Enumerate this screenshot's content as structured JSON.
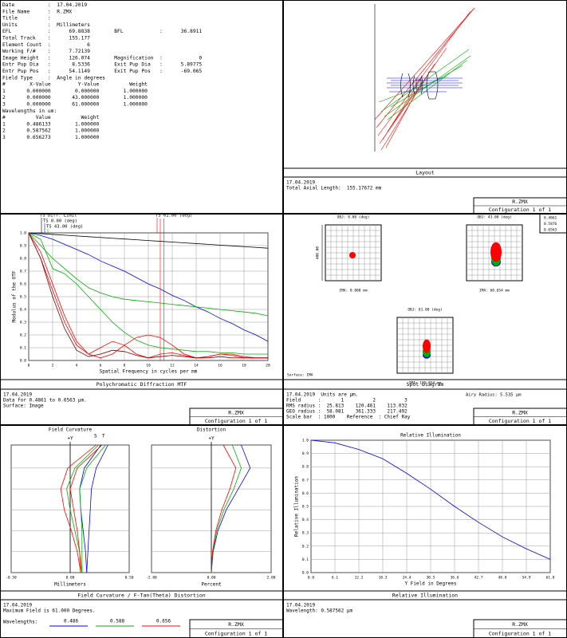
{
  "prescription": {
    "lines": [
      "Date           :  17.04.2019",
      "File Name      :  R.ZMX",
      "Title          :",
      "Units          :  Millimeters",
      "EFL            :      69.8838        BFL            :      36.8911",
      "Total Track    :      155.177",
      "Element Count  :            6",
      "Working F/#    :      7.72139",
      "Image Height   :      126.074        Magnification  :            0",
      "Entr Pup Dia   :       8.5336        Exit Pup Dia   :      5.89775",
      "Entr Pup Pos   :      54.1149        Exit Pup Pos   :      -69.065",
      "Field Type     :  Angle in degrees",
      "#        X-Value         Y-Value          Weight",
      "1       0.000000        0.000000        1.000000",
      "2       0.000000       43.000000        1.000000",
      "3       0.000000       61.000000        1.000000",
      "Wavelengths in um:",
      "#          Value          Weight",
      "1       0.486133        1.000000",
      "2       0.587562        1.000000",
      "3       0.656273        1.000000"
    ]
  },
  "panels": [
    {
      "caption": "Layout",
      "info": [
        "17.04.2019",
        "Total Axial Length:  155.17672 mm"
      ],
      "file": "R.ZMX",
      "config": "Configuration 1 of 1"
    },
    {
      "caption": "Polychromatic Diffraction MTF",
      "info": [
        "17.04.2019",
        "Data for 0.4861 to 0.6563 µm.",
        "Surface: Image"
      ],
      "file": "R.ZMX",
      "config": "Configuration 1 of 1"
    },
    {
      "caption": "Spot Diagram",
      "info": [
        "17.04.2019  Units are µm.",
        "Field      :       1          2          3",
        "RMS radius :  25.813    120.461    113.032",
        "GEO radius :  58.081    361.333    217.492",
        "Scale bar  : 1000    Reference  : Chief Ray"
      ],
      "file": "R.ZMX",
      "config": "Configuration 1 of 1"
    },
    {
      "caption": "Field Curvature / F-Tan(Theta) Distortion",
      "info": [
        "17.04.2019",
        "Maximum Field is 61.000 Degrees."
      ],
      "file": "R.ZMX",
      "config": "Configuration 1 of 1"
    },
    {
      "caption": "Relative Illumination",
      "info": [
        "17.04.2019",
        "Wavelength: 0.587562 µm"
      ],
      "file": "R.ZMX",
      "config": "Configuration 1 of 1"
    }
  ],
  "spot": {
    "airy": "Airy Radius: 5.535 µm",
    "fields": [
      {
        "obj": "OBJ: 0.00 (deg)",
        "ima": "IMA: 0.000 mm"
      },
      {
        "obj": "OBJ: 43.00 (deg)",
        "ima": "IMA: 68.654 mm"
      },
      {
        "obj": "OBJ: 61.00 (deg)",
        "ima": "IMA: 125.854 mm"
      }
    ],
    "wavelengths": [
      {
        "label": "0.4861",
        "color": "#0000ff"
      },
      {
        "label": "0.5876",
        "color": "#00b000"
      },
      {
        "label": "0.6563",
        "color": "#ff0000"
      }
    ],
    "surface": "Surface: IMA",
    "scale": "400.00"
  },
  "fc_wavelengths": {
    "label": "Wavelengths:",
    "items": [
      {
        "label": "0.486",
        "color": "#0000ff"
      },
      {
        "label": "0.588",
        "color": "#00b000"
      },
      {
        "label": "0.656",
        "color": "#ff0000"
      }
    ]
  },
  "chart_data": [
    {
      "type": "line",
      "xlabel": "Spatial Frequency in cycles per mm",
      "ylabel": "Modulus of the OTF",
      "x": [
        0,
        1,
        2,
        3,
        4,
        5,
        6,
        7,
        8,
        9,
        10,
        11,
        12,
        13,
        14,
        15,
        16,
        17,
        18,
        19,
        20
      ],
      "xlim": [
        0,
        20
      ],
      "xticks": [
        0,
        2,
        4,
        6,
        8,
        10,
        12,
        14,
        16,
        18,
        20
      ],
      "ylim": [
        0,
        1
      ],
      "yticks": [
        {
          "value": 0,
          "label": "0.0"
        },
        0.1,
        0.2,
        0.3,
        0.4,
        0.5,
        0.6,
        0.7,
        0.8,
        0.9,
        {
          "value": 1,
          "label": "1.0"
        }
      ],
      "grid": true,
      "series": [
        {
          "name": "TS Diff. Limit",
          "color": "#000000",
          "values": [
            1,
            0.994,
            0.988,
            0.982,
            0.976,
            0.97,
            0.964,
            0.958,
            0.952,
            0.946,
            0.94,
            0.934,
            0.928,
            0.922,
            0.916,
            0.91,
            0.904,
            0.898,
            0.892,
            0.886,
            0.88
          ]
        },
        {
          "name": "TS 0.00 (deg)",
          "color": "#0000ff",
          "values": [
            1,
            0.98,
            0.95,
            0.91,
            0.87,
            0.83,
            0.78,
            0.74,
            0.7,
            0.65,
            0.6,
            0.56,
            0.51,
            0.47,
            0.42,
            0.38,
            0.33,
            0.29,
            0.24,
            0.2,
            0.15
          ]
        },
        {
          "name": "TS 43.00 (deg)",
          "color": "#00b000",
          "values": [
            1,
            0.9,
            0.8,
            0.72,
            0.64,
            0.57,
            0.53,
            0.5,
            0.48,
            0.47,
            0.46,
            0.45,
            0.44,
            0.43,
            0.42,
            0.41,
            0.4,
            0.39,
            0.38,
            0.37,
            0.35
          ]
        },
        {
          "name": "TS 61.00 (deg)",
          "color": "#ff0000",
          "values": [
            1,
            0.8,
            0.55,
            0.3,
            0.12,
            0.05,
            0.1,
            0.15,
            0.12,
            0.05,
            0.02,
            0.05,
            0.06,
            0.04,
            0.02,
            0.03,
            0.05,
            0.05,
            0.03,
            0.02,
            0.02
          ]
        },
        {
          "color": "#00b000",
          "values": [
            1,
            0.95,
            0.72,
            0.68,
            0.6,
            0.5,
            0.4,
            0.3,
            0.22,
            0.16,
            0.12,
            0.1,
            0.09,
            0.08,
            0.07,
            0.07,
            0.06,
            0.06,
            0.05,
            0.05,
            0.05
          ]
        },
        {
          "color": "#ff0000",
          "values": [
            1,
            0.85,
            0.6,
            0.35,
            0.15,
            0.05,
            0.02,
            0.05,
            0.12,
            0.18,
            0.2,
            0.18,
            0.12,
            0.05,
            0.02,
            0.03,
            0.05,
            0.04,
            0.02,
            0.02,
            0.02
          ]
        },
        {
          "color": "#800000",
          "values": [
            1,
            0.8,
            0.5,
            0.25,
            0.08,
            0.03,
            0.05,
            0.08,
            0.07,
            0.04,
            0.02,
            0.03,
            0.04,
            0.03,
            0.02,
            0.02,
            0.03,
            0.02,
            0.02,
            0.02,
            0.02
          ]
        }
      ]
    },
    {
      "type": "vline",
      "title": "Field Curvature",
      "yname": "+Y",
      "xlabel": "Millimeters",
      "s_label": "S",
      "t_label": "T",
      "y": [
        0,
        10,
        20,
        30,
        40,
        50,
        61
      ],
      "ylim": [
        0,
        61
      ],
      "yticks": [
        0,
        10,
        20,
        30,
        40,
        50,
        61
      ],
      "ytick_labels": false,
      "xlim": [
        -0.5,
        0.5
      ],
      "xticks": [
        {
          "value": -0.5,
          "label": "-0.50"
        },
        {
          "value": 0,
          "label": "0.00"
        },
        {
          "value": 0.5,
          "label": "0.50"
        }
      ],
      "grid": true,
      "series": [
        {
          "color": "#0000ff",
          "values": [
            0.14,
            0.15,
            0.16,
            0.17,
            0.18,
            0.22,
            0.32
          ]
        },
        {
          "color": "#0000ff",
          "values": [
            0.14,
            0.13,
            0.11,
            0.09,
            0.08,
            0.12,
            0.26
          ]
        },
        {
          "color": "#00b000",
          "values": [
            0.1,
            0.1,
            0.1,
            0.09,
            0.08,
            0.14,
            0.3
          ]
        },
        {
          "color": "#00b000",
          "values": [
            0.1,
            0.08,
            0.04,
            0,
            -0.03,
            0.04,
            0.24
          ]
        },
        {
          "color": "#ff0000",
          "values": [
            0.09,
            0.08,
            0.06,
            0.03,
            0,
            0.06,
            0.27
          ]
        },
        {
          "color": "#ff0000",
          "values": [
            0.09,
            0.06,
            0.01,
            -0.05,
            -0.08,
            -0.02,
            0.22
          ]
        }
      ]
    },
    {
      "type": "vline",
      "title": "Distortion",
      "yname": "+Y",
      "xlabel": "Percent",
      "y": [
        0,
        10,
        20,
        30,
        40,
        50,
        61
      ],
      "ylim": [
        0,
        61
      ],
      "yticks": [
        0,
        10,
        20,
        30,
        40,
        50,
        61
      ],
      "ytick_labels": false,
      "xlim": [
        -2,
        2
      ],
      "xticks": [
        {
          "value": -2,
          "label": "-2.00"
        },
        {
          "value": 0,
          "label": "0.00"
        },
        {
          "value": 2,
          "label": "2.00"
        }
      ],
      "grid": true,
      "series": [
        {
          "color": "#0000ff",
          "values": [
            0,
            0.06,
            0.22,
            0.5,
            0.9,
            1.3,
            1
          ]
        },
        {
          "color": "#00b000",
          "values": [
            0,
            0.05,
            0.18,
            0.42,
            0.75,
            1,
            0.7
          ]
        },
        {
          "color": "#ff0000",
          "values": [
            0,
            0.04,
            0.15,
            0.35,
            0.62,
            0.82,
            0.4
          ]
        }
      ]
    },
    {
      "type": "line",
      "title": "Relative Illumination",
      "xlabel": "Y Field in Degrees",
      "ylabel": "Relative Illumination",
      "x": [
        0,
        6.1,
        12.2,
        18.3,
        24.4,
        30.5,
        36.6,
        42.7,
        48.8,
        54.9,
        61
      ],
      "xlim": [
        0,
        61
      ],
      "xticks": [
        {
          "value": 0,
          "label": "0.0"
        },
        6.1,
        12.2,
        18.3,
        24.4,
        30.5,
        36.6,
        42.7,
        48.8,
        54.9,
        {
          "value": 61,
          "label": "61.0"
        }
      ],
      "ylim": [
        0,
        1
      ],
      "yticks": [
        {
          "value": 0,
          "label": "0.0"
        },
        0.1,
        0.2,
        0.3,
        0.4,
        0.5,
        0.6,
        0.7,
        0.8,
        0.9,
        {
          "value": 1,
          "label": "1.0"
        }
      ],
      "grid": true,
      "series": [
        {
          "color": "#0000ff",
          "values": [
            1,
            0.98,
            0.93,
            0.86,
            0.75,
            0.63,
            0.5,
            0.38,
            0.27,
            0.18,
            0.1
          ]
        }
      ]
    }
  ]
}
